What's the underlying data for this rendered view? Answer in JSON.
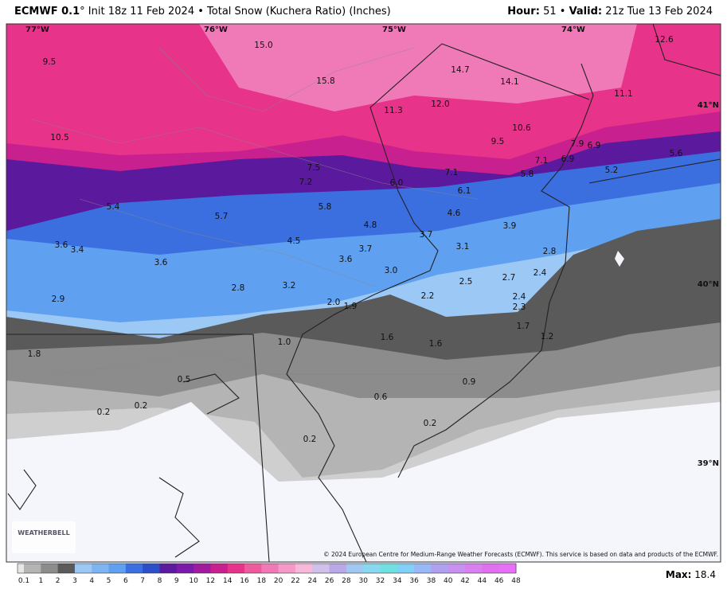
{
  "header": {
    "model": "ECMWF 0.1",
    "degree": "°",
    "description": "Init 18z 11 Feb 2024 • Total Snow (Kuchera Ratio) (Inches)",
    "hour_label": "Hour:",
    "hour": "51",
    "separator": "•",
    "valid_label": "Valid:",
    "valid": "21z Tue 13 Feb 2024"
  },
  "map": {
    "labels": [
      "12.6",
      "15.0",
      "9.5",
      "14.7",
      "14.1",
      "15.8",
      "11.1",
      "11.3",
      "12.0",
      "10.6",
      "10.5",
      "9.5",
      "7.9",
      "6.9",
      "5.6",
      "7.1",
      "6.9",
      "7.5",
      "7.1",
      "5.8",
      "5.2",
      "7.2",
      "6.0",
      "6.1",
      "5.4",
      "5.8",
      "5.7",
      "4.6",
      "3.9",
      "4.8",
      "3.7",
      "4.5",
      "3.6",
      "3.4",
      "3.1",
      "3.7",
      "2.8",
      "3.6",
      "3.6",
      "3.0",
      "2.4",
      "2.7",
      "2.5",
      "2.8",
      "3.2",
      "2.2",
      "2.4",
      "2.9",
      "2.3",
      "2.0",
      "1.9",
      "1.7",
      "1.6",
      "1.2",
      "1.0",
      "1.6",
      "1.8",
      "0.5",
      "0.9",
      "0.6",
      "0.2",
      "0.2",
      "0.2",
      "0.2"
    ],
    "graticule": [
      "77°W",
      "76°W",
      "75°W",
      "74°W",
      "41°N",
      "40°N",
      "39°N"
    ],
    "logo": "WEATHERBELL",
    "copyright": "© 2024 European Centre for Medium-Range Weather Forecasts (ECMWF). This service is based on data and products of the ECMWF."
  },
  "legend": {
    "ticks": [
      "0.1",
      "1",
      "2",
      "3",
      "4",
      "5",
      "6",
      "7",
      "8",
      "9",
      "10",
      "12",
      "14",
      "16",
      "18",
      "20",
      "22",
      "24",
      "26",
      "28",
      "30",
      "32",
      "34",
      "36",
      "38",
      "40",
      "42",
      "44",
      "46",
      "48"
    ],
    "colors": [
      "#e6e6e6",
      "#b4b4b4",
      "#8c8c8c",
      "#5a5a5a",
      "#9cc8f5",
      "#7db4f2",
      "#5fa0f0",
      "#3b6fe0",
      "#2b4fc8",
      "#5b1a9e",
      "#7a1aa8",
      "#a01a9e",
      "#c8208e",
      "#e8338a",
      "#ee5a9e",
      "#f07ab8",
      "#f59ac8",
      "#f8b8da",
      "#d0c0ea",
      "#b8a8e8",
      "#a0c8f0",
      "#88d8f0",
      "#70e0e0",
      "#80d0f8",
      "#98b8f8",
      "#b0a0f0",
      "#c890f0",
      "#d880f0",
      "#e070f0",
      "#e870f8"
    ],
    "max_label": "Max:",
    "max": "18.4"
  }
}
